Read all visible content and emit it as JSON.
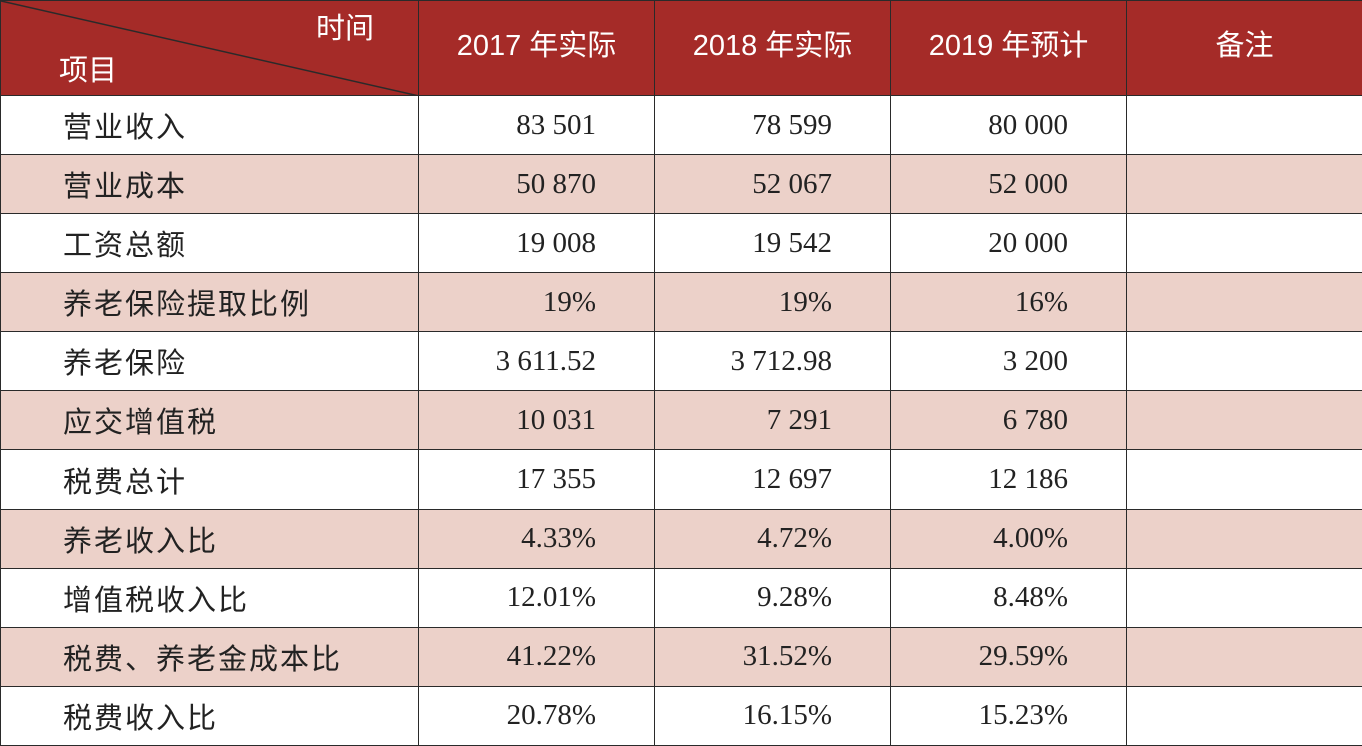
{
  "header": {
    "corner_top": "时间",
    "corner_bottom": "项目",
    "columns": [
      "2017 年实际",
      "2018 年实际",
      "2019 年预计",
      "备注"
    ]
  },
  "rows": [
    {
      "item": "营业收入",
      "v2017": "83 501",
      "v2018": "78 599",
      "v2019": "80 000",
      "note": ""
    },
    {
      "item": "营业成本",
      "v2017": "50 870",
      "v2018": "52 067",
      "v2019": "52 000",
      "note": ""
    },
    {
      "item": "工资总额",
      "v2017": "19 008",
      "v2018": "19 542",
      "v2019": "20 000",
      "note": ""
    },
    {
      "item": "养老保险提取比例",
      "v2017": "19%",
      "v2018": "19%",
      "v2019": "16%",
      "note": ""
    },
    {
      "item": "养老保险",
      "v2017": "3 611.52",
      "v2018": "3 712.98",
      "v2019": "3 200",
      "note": ""
    },
    {
      "item": "应交增值税",
      "v2017": "10 031",
      "v2018": "7 291",
      "v2019": "6 780",
      "note": ""
    },
    {
      "item": "税费总计",
      "v2017": "17 355",
      "v2018": "12 697",
      "v2019": "12 186",
      "note": ""
    },
    {
      "item": "养老收入比",
      "v2017": "4.33%",
      "v2018": "4.72%",
      "v2019": "4.00%",
      "note": ""
    },
    {
      "item": "增值税收入比",
      "v2017": "12.01%",
      "v2018": "9.28%",
      "v2019": "8.48%",
      "note": ""
    },
    {
      "item": "税费、养老金成本比",
      "v2017": "41.22%",
      "v2018": "31.52%",
      "v2019": "29.59%",
      "note": ""
    },
    {
      "item": "税费收入比",
      "v2017": "20.78%",
      "v2018": "16.15%",
      "v2019": "15.23%",
      "note": ""
    }
  ],
  "colors": {
    "header_bg": "#a52b28",
    "stripe_bg": "#ecd1c9",
    "row_bg": "#ffffff"
  }
}
